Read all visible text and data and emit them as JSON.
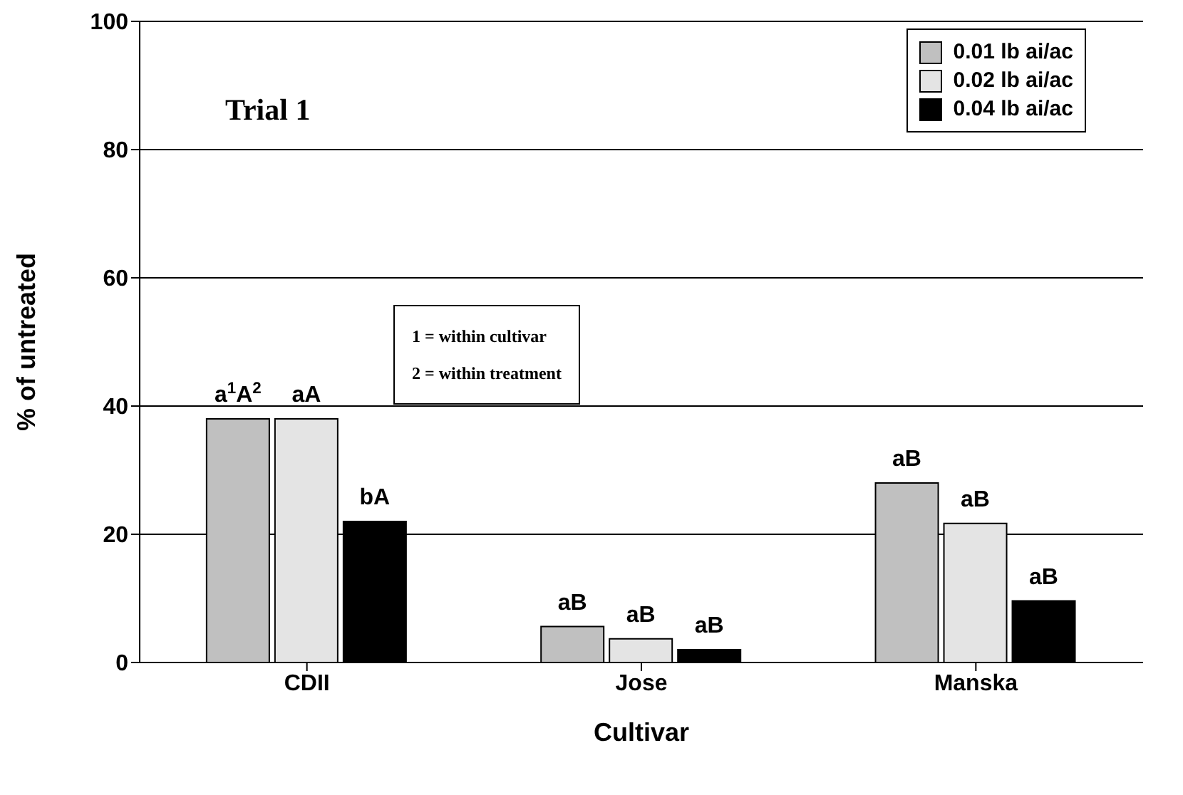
{
  "chart_data": {
    "type": "bar",
    "title": "Trial 1",
    "xlabel": "Cultivar",
    "ylabel": "% of untreated",
    "categories": [
      "CDII",
      "Jose",
      "Manska"
    ],
    "series": [
      {
        "name": "0.01 lb ai/ac",
        "color": "#c0c0c0",
        "values": [
          38,
          5.6,
          28
        ],
        "value_labels": [
          "a$^{1}$A$^{2}$",
          "aB",
          "aB"
        ]
      },
      {
        "name": "0.02 lb ai/ac",
        "color": "#e4e4e4",
        "values": [
          38,
          3.7,
          21.7
        ],
        "value_labels": [
          "aA",
          "aB",
          "aB"
        ]
      },
      {
        "name": "0.04 lb ai/ac",
        "color": "#000000",
        "values": [
          22,
          2,
          9.6
        ],
        "value_labels": [
          "bA",
          "aB",
          "aB"
        ]
      }
    ],
    "ylim": [
      0,
      100
    ],
    "yticks": [
      0,
      20,
      40,
      60,
      80,
      100
    ],
    "grid": "y",
    "legend": "top right",
    "annotations": [
      "1 = within cultivar",
      "2 = within treatment"
    ]
  }
}
